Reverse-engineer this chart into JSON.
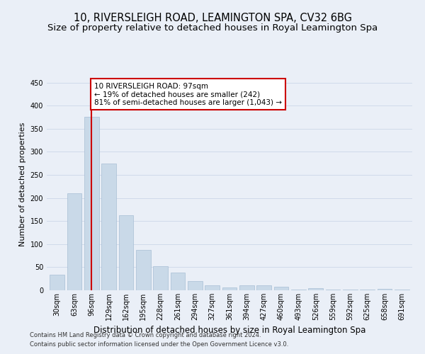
{
  "title1": "10, RIVERSLEIGH ROAD, LEAMINGTON SPA, CV32 6BG",
  "title2": "Size of property relative to detached houses in Royal Leamington Spa",
  "xlabel": "Distribution of detached houses by size in Royal Leamington Spa",
  "ylabel": "Number of detached properties",
  "footer1": "Contains HM Land Registry data © Crown copyright and database right 2024.",
  "footer2": "Contains public sector information licensed under the Open Government Licence v3.0.",
  "bar_labels": [
    "30sqm",
    "63sqm",
    "96sqm",
    "129sqm",
    "162sqm",
    "195sqm",
    "228sqm",
    "261sqm",
    "294sqm",
    "327sqm",
    "361sqm",
    "394sqm",
    "427sqm",
    "460sqm",
    "493sqm",
    "526sqm",
    "559sqm",
    "592sqm",
    "625sqm",
    "658sqm",
    "691sqm"
  ],
  "bar_values": [
    33,
    210,
    375,
    275,
    163,
    88,
    52,
    39,
    20,
    11,
    6,
    11,
    11,
    7,
    1,
    5,
    1,
    1,
    1,
    3,
    1
  ],
  "bar_color": "#c9d9e8",
  "bar_edge_color": "#a8bfd4",
  "ylim": [
    0,
    460
  ],
  "yticks": [
    0,
    50,
    100,
    150,
    200,
    250,
    300,
    350,
    400,
    450
  ],
  "property_bar_index": 2,
  "annotation_text": "10 RIVERSLEIGH ROAD: 97sqm\n← 19% of detached houses are smaller (242)\n81% of semi-detached houses are larger (1,043) →",
  "red_line_color": "#cc0000",
  "annotation_box_color": "#ffffff",
  "annotation_box_edge": "#cc0000",
  "grid_color": "#d0daea",
  "bg_color": "#eaeff7",
  "plot_bg_color": "#eaeff7",
  "title1_fontsize": 10.5,
  "title2_fontsize": 9.5,
  "ylabel_fontsize": 8,
  "xlabel_fontsize": 8.5,
  "footer_fontsize": 6.0,
  "tick_fontsize": 7,
  "annot_fontsize": 7.5
}
